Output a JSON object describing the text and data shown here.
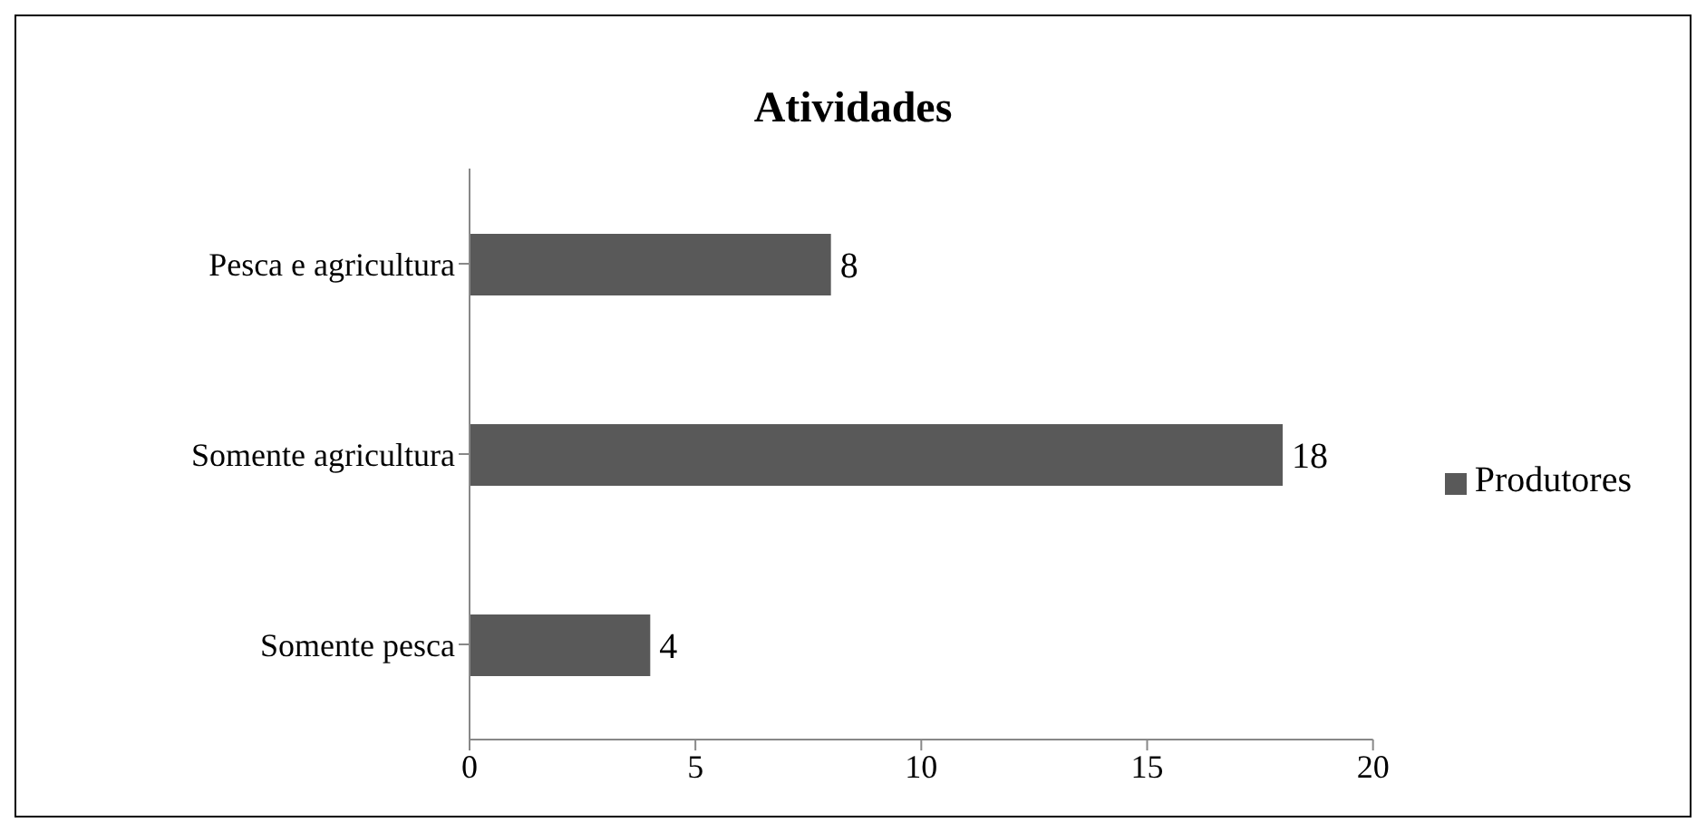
{
  "chart_data": {
    "type": "bar",
    "orientation": "horizontal",
    "title": "Atividades",
    "categories": [
      "Pesca e agricultura",
      "Somente agricultura",
      "Somente pesca"
    ],
    "series": [
      {
        "name": "Produtores",
        "color": "#595959",
        "values": [
          8,
          18,
          4
        ]
      }
    ],
    "xlim": [
      0,
      20
    ],
    "xticks": [
      0,
      5,
      10,
      15,
      20
    ],
    "data_labels": true,
    "legend": "right",
    "grid": false
  }
}
